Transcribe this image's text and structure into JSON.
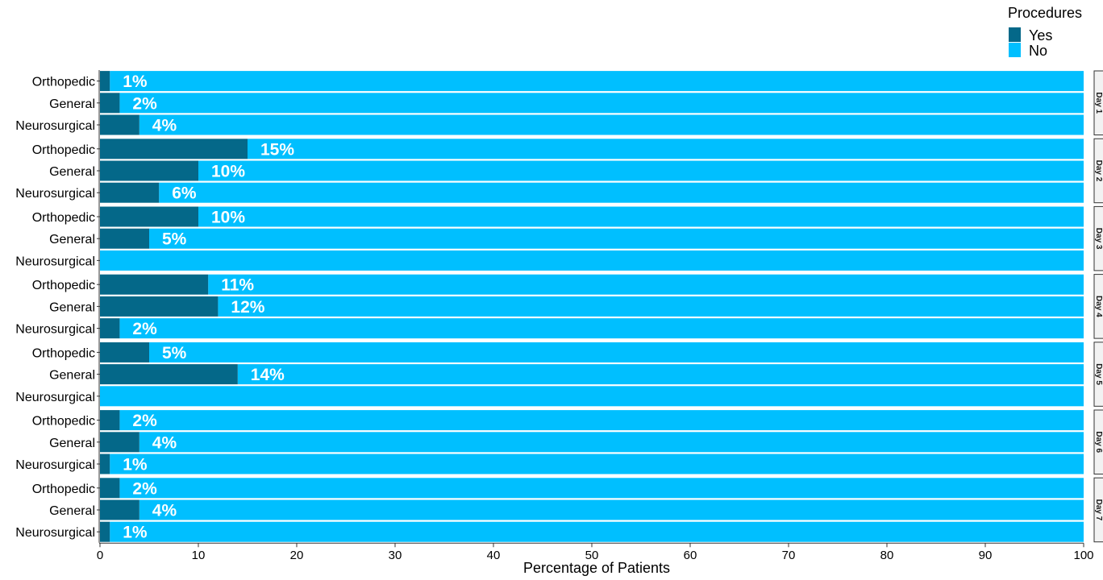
{
  "chart_data": {
    "type": "bar",
    "orientation": "horizontal",
    "stacked": true,
    "xlabel": "Percentage of Patients",
    "xlim": [
      0,
      100
    ],
    "xticks": [
      "0",
      "10",
      "20",
      "30",
      "40",
      "50",
      "60",
      "70",
      "80",
      "90",
      "100"
    ],
    "grid": false,
    "legend": {
      "title": "Procedures",
      "position": "top-right",
      "entries": [
        {
          "label": "Yes",
          "color": "#046889"
        },
        {
          "label": "No",
          "color": "#00bfff"
        }
      ]
    },
    "categories": [
      "Orthopedic",
      "General",
      "Neurosurgical"
    ],
    "facets": [
      {
        "strip": "Day 1",
        "yes": [
          1,
          2,
          4
        ],
        "labels": [
          "1%",
          "2%",
          "4%"
        ]
      },
      {
        "strip": "Day 2",
        "yes": [
          15,
          10,
          6
        ],
        "labels": [
          "15%",
          "10%",
          "6%"
        ]
      },
      {
        "strip": "Day 3",
        "yes": [
          10,
          5,
          0
        ],
        "labels": [
          "10%",
          "5%",
          ""
        ]
      },
      {
        "strip": "Day 4",
        "yes": [
          11,
          12,
          2
        ],
        "labels": [
          "11%",
          "12%",
          "2%"
        ]
      },
      {
        "strip": "Day 5",
        "yes": [
          5,
          14,
          0
        ],
        "labels": [
          "5%",
          "14%",
          ""
        ]
      },
      {
        "strip": "Day 6",
        "yes": [
          2,
          4,
          1
        ],
        "labels": [
          "2%",
          "4%",
          "1%"
        ]
      },
      {
        "strip": "Day 7",
        "yes": [
          2,
          4,
          1
        ],
        "labels": [
          "2%",
          "4%",
          "1%"
        ]
      }
    ]
  }
}
